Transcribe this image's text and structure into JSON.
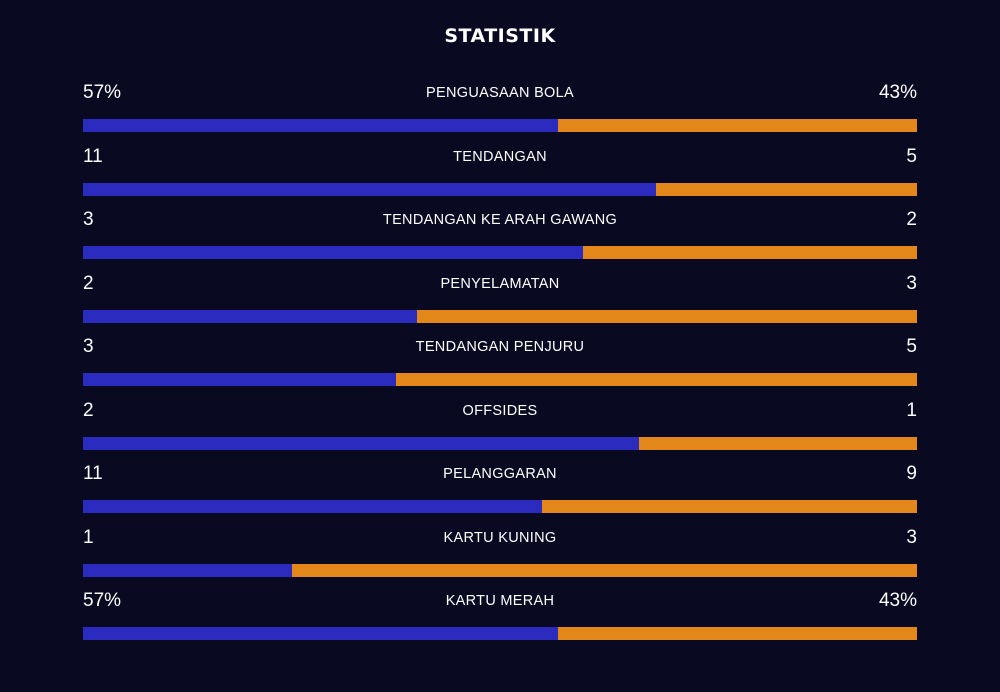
{
  "title": "STATISTIK",
  "colors": {
    "background": "#0a0922",
    "home": "#2b2bc0",
    "away": "#e4871b",
    "text": "#ffffff"
  },
  "stats": [
    {
      "label": "PENGUASAAN BOLA",
      "left": "57%",
      "right": "43%",
      "home_share": 0.57
    },
    {
      "label": "TENDANGAN",
      "left": "11",
      "right": "5",
      "home_share": 0.687
    },
    {
      "label": "TENDANGAN KE ARAH GAWANG",
      "left": "3",
      "right": "2",
      "home_share": 0.6
    },
    {
      "label": "PENYELAMATAN",
      "left": "2",
      "right": "3",
      "home_share": 0.4
    },
    {
      "label": "TENDANGAN PENJURU",
      "left": "3",
      "right": "5",
      "home_share": 0.375
    },
    {
      "label": "OFFSIDES",
      "left": "2",
      "right": "1",
      "home_share": 0.667
    },
    {
      "label": "PELANGGARAN",
      "left": "11",
      "right": "9",
      "home_share": 0.55
    },
    {
      "label": "KARTU KUNING",
      "left": "1",
      "right": "3",
      "home_share": 0.25
    },
    {
      "label": "KARTU MERAH",
      "left": "57%",
      "right": "43%",
      "home_share": 0.57
    }
  ]
}
